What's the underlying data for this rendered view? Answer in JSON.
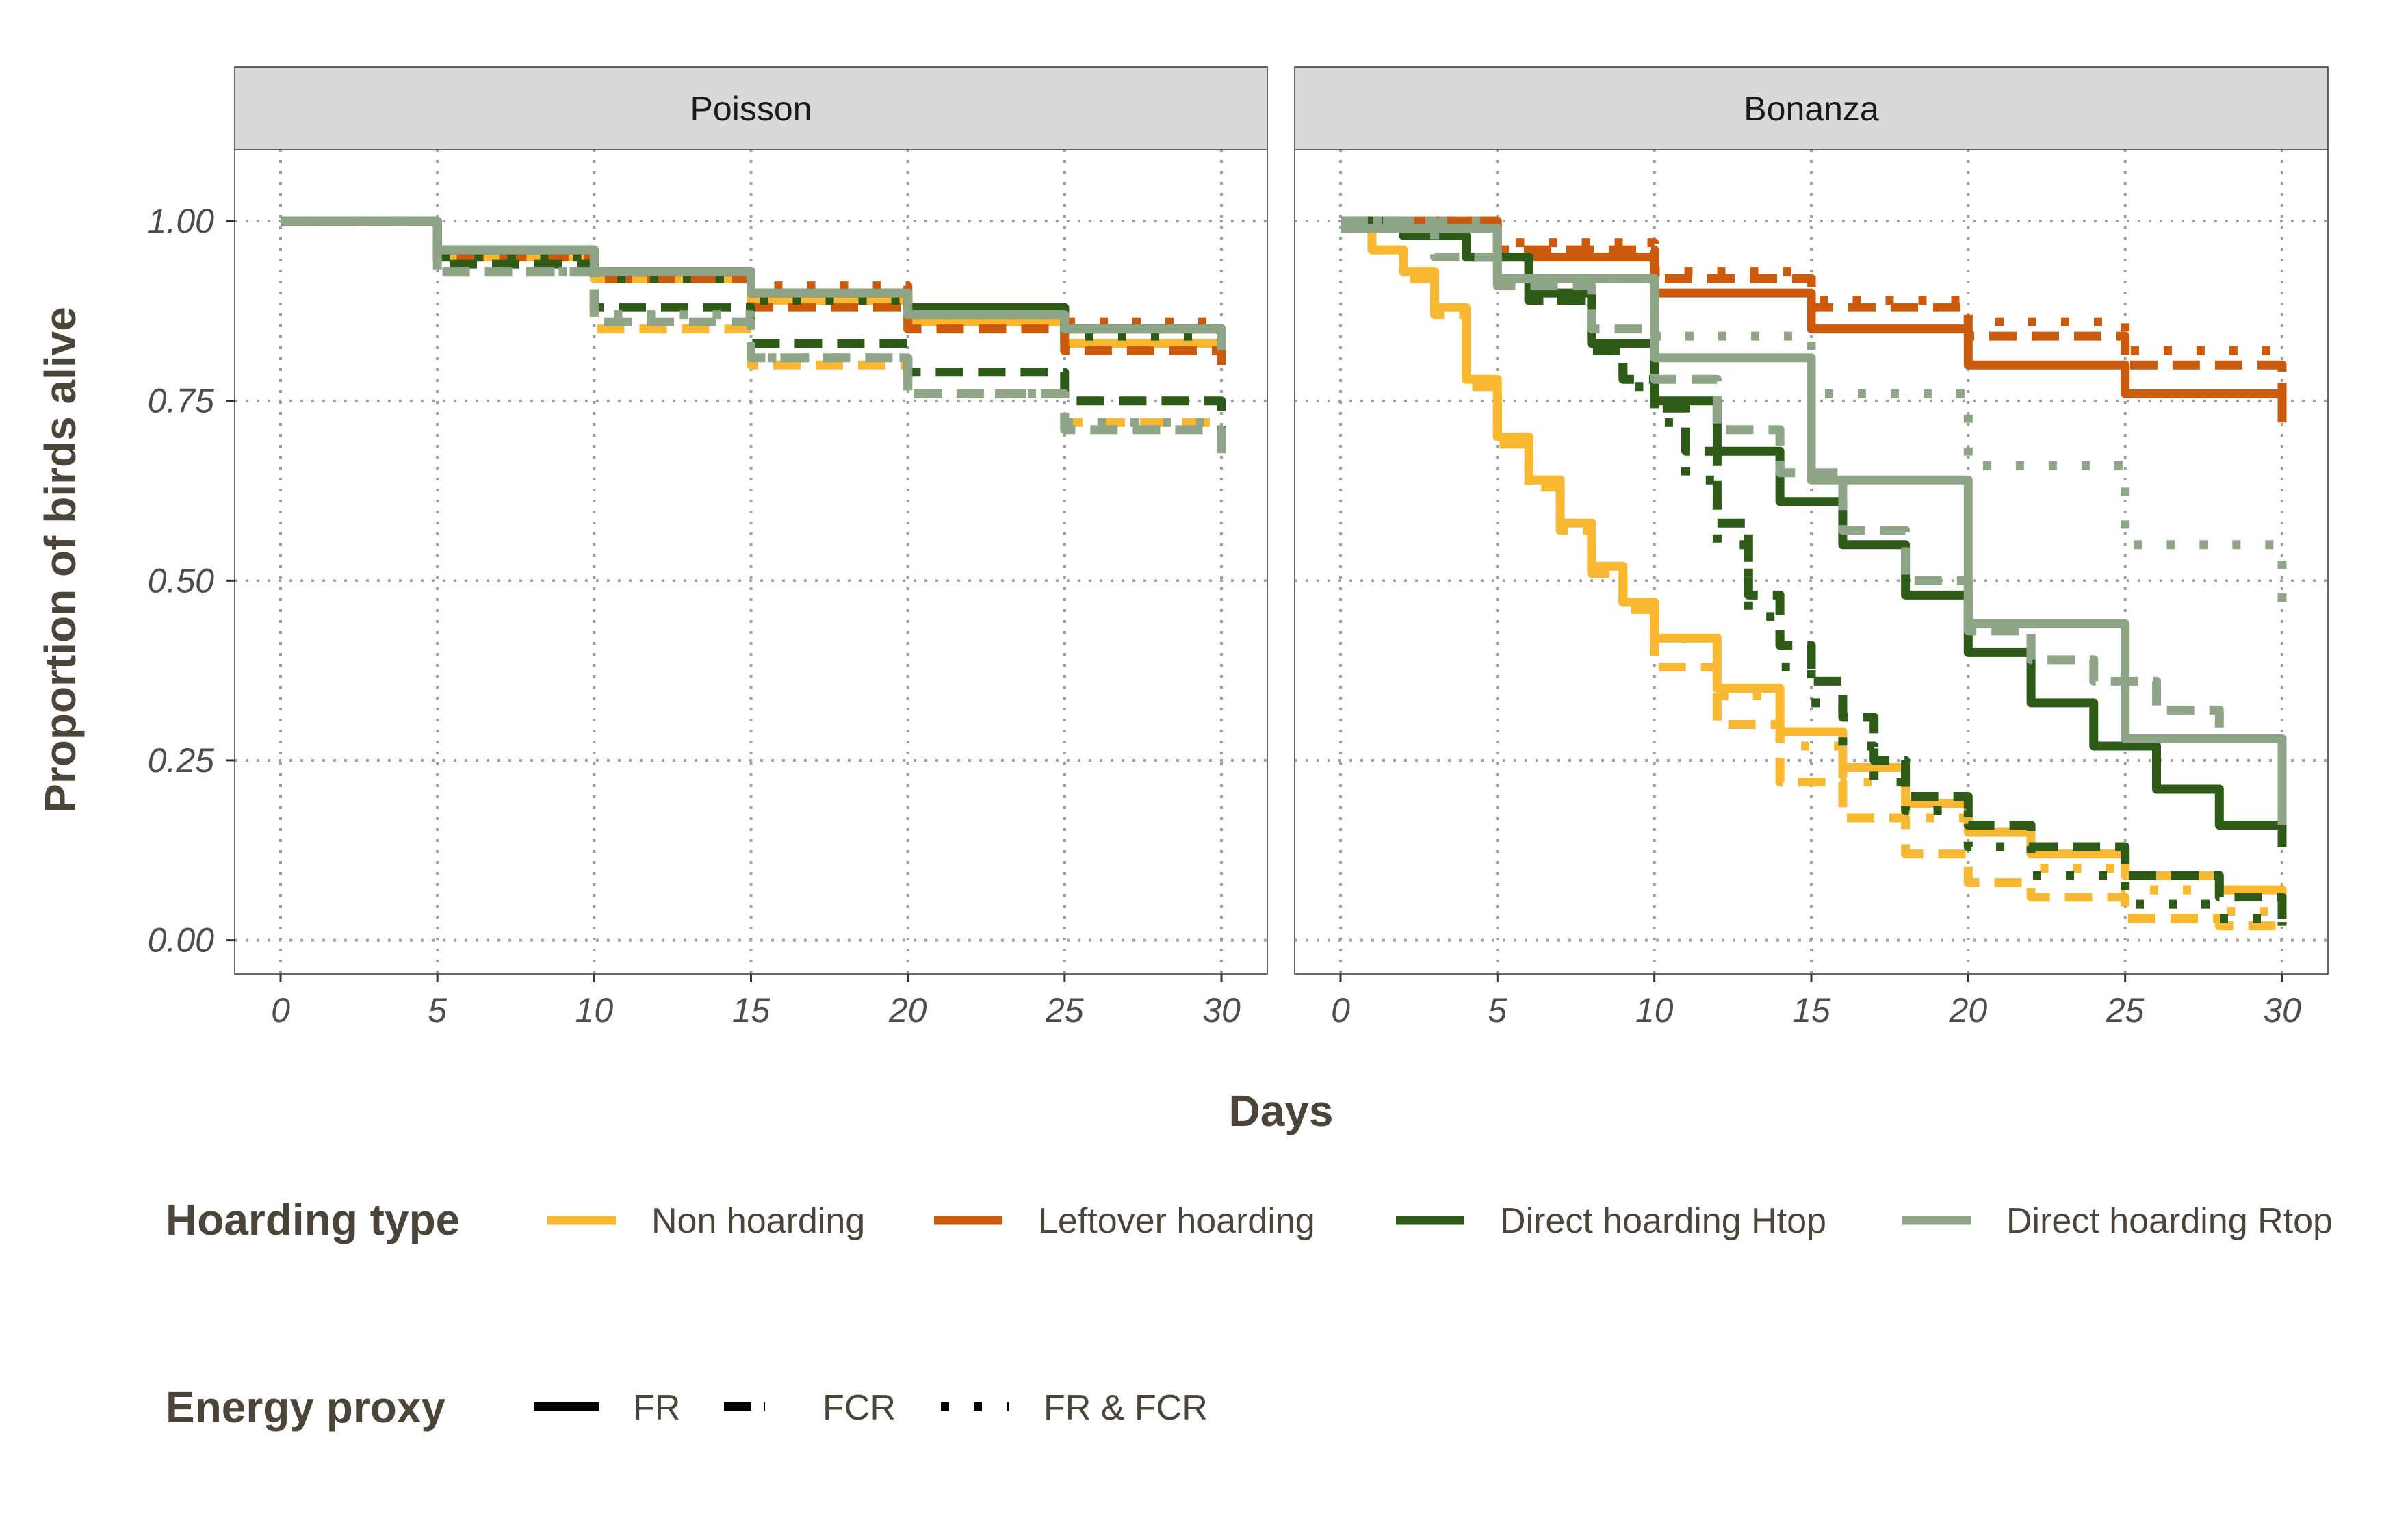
{
  "chart_data": {
    "type": "line",
    "ylabel": "Proportion of birds alive",
    "xlabel": "Days",
    "xlim": [
      0,
      30
    ],
    "ylim": [
      0,
      1
    ],
    "x_ticks": [
      "0",
      "5",
      "10",
      "15",
      "20",
      "25",
      "30"
    ],
    "y_ticks": [
      "0.00",
      "0.25",
      "0.50",
      "0.75",
      "1.00"
    ],
    "grid": "dotted",
    "legend_position": "bottom",
    "legends": {
      "hoarding_type": {
        "title": "Hoarding type",
        "entries": [
          {
            "label": "Non hoarding",
            "color": "#f9b832"
          },
          {
            "label": "Leftover hoarding",
            "color": "#cc5a0d"
          },
          {
            "label": "Direct hoarding Htop",
            "color": "#2d5a16"
          },
          {
            "label": "Direct hoarding Rtop",
            "color": "#8fa587"
          }
        ]
      },
      "energy_proxy": {
        "title": "Energy proxy",
        "entries": [
          {
            "label": "FR",
            "dash": "solid"
          },
          {
            "label": "FCR",
            "dash": "dashed"
          },
          {
            "label": "FR & FCR",
            "dash": "dotted"
          }
        ]
      }
    },
    "panels": [
      {
        "title": "Poisson",
        "series": [
          {
            "hoarding": "Non hoarding",
            "proxy": "FR",
            "x": [
              0,
              5,
              10,
              15,
              20,
              25,
              30
            ],
            "y": [
              1.0,
              0.95,
              0.92,
              0.89,
              0.86,
              0.83,
              0.8
            ]
          },
          {
            "hoarding": "Non hoarding",
            "proxy": "FCR",
            "x": [
              0,
              5,
              10,
              15,
              20,
              25,
              30
            ],
            "y": [
              1.0,
              0.93,
              0.85,
              0.8,
              0.76,
              0.72,
              0.67
            ]
          },
          {
            "hoarding": "Non hoarding",
            "proxy": "FR & FCR",
            "x": [
              0,
              5,
              10,
              15,
              20,
              25,
              30
            ],
            "y": [
              1.0,
              0.96,
              0.93,
              0.9,
              0.87,
              0.85,
              0.82
            ]
          },
          {
            "hoarding": "Leftover hoarding",
            "proxy": "FR",
            "x": [
              0,
              5,
              10,
              15,
              20,
              25,
              30
            ],
            "y": [
              1.0,
              0.96,
              0.93,
              0.9,
              0.88,
              0.85,
              0.82
            ]
          },
          {
            "hoarding": "Leftover hoarding",
            "proxy": "FCR",
            "x": [
              0,
              5,
              10,
              15,
              20,
              25,
              30
            ],
            "y": [
              1.0,
              0.95,
              0.92,
              0.88,
              0.85,
              0.82,
              0.8
            ]
          },
          {
            "hoarding": "Leftover hoarding",
            "proxy": "FR & FCR",
            "x": [
              0,
              5,
              10,
              15,
              20,
              25,
              30
            ],
            "y": [
              1.0,
              0.96,
              0.93,
              0.91,
              0.88,
              0.86,
              0.84
            ]
          },
          {
            "hoarding": "Direct hoarding Htop",
            "proxy": "FR",
            "x": [
              0,
              5,
              10,
              15,
              20,
              25,
              30
            ],
            "y": [
              1.0,
              0.96,
              0.93,
              0.9,
              0.88,
              0.85,
              0.82
            ]
          },
          {
            "hoarding": "Direct hoarding Htop",
            "proxy": "FCR",
            "x": [
              0,
              5,
              10,
              15,
              20,
              25,
              30
            ],
            "y": [
              1.0,
              0.94,
              0.88,
              0.83,
              0.79,
              0.75,
              0.7
            ]
          },
          {
            "hoarding": "Direct hoarding Htop",
            "proxy": "FR & FCR",
            "x": [
              0,
              5,
              10,
              15,
              20,
              25,
              30
            ],
            "y": [
              1.0,
              0.95,
              0.92,
              0.89,
              0.87,
              0.84,
              0.81
            ]
          },
          {
            "hoarding": "Direct hoarding Rtop",
            "proxy": "FR",
            "x": [
              0,
              5,
              10,
              15,
              20,
              25,
              30
            ],
            "y": [
              1.0,
              0.96,
              0.93,
              0.9,
              0.87,
              0.85,
              0.82
            ]
          },
          {
            "hoarding": "Direct hoarding Rtop",
            "proxy": "FCR",
            "x": [
              0,
              5,
              10,
              15,
              20,
              25,
              30
            ],
            "y": [
              1.0,
              0.93,
              0.86,
              0.81,
              0.76,
              0.71,
              0.66
            ]
          },
          {
            "hoarding": "Direct hoarding Rtop",
            "proxy": "FR & FCR",
            "x": [
              0,
              5,
              10,
              15,
              20,
              25,
              30
            ],
            "y": [
              1.0,
              0.93,
              0.87,
              0.81,
              0.76,
              0.72,
              0.67
            ]
          }
        ]
      },
      {
        "title": "Bonanza",
        "series": [
          {
            "hoarding": "Non hoarding",
            "proxy": "FR",
            "x": [
              0,
              1,
              2,
              3,
              4,
              5,
              6,
              7,
              8,
              9,
              10,
              12,
              14,
              16,
              18,
              20,
              22,
              25,
              28,
              30
            ],
            "y": [
              1.0,
              0.96,
              0.93,
              0.88,
              0.78,
              0.7,
              0.64,
              0.58,
              0.52,
              0.47,
              0.42,
              0.35,
              0.29,
              0.24,
              0.19,
              0.15,
              0.12,
              0.09,
              0.07,
              0.05
            ]
          },
          {
            "hoarding": "Non hoarding",
            "proxy": "FCR",
            "x": [
              0,
              1,
              2,
              3,
              4,
              5,
              6,
              7,
              8,
              9,
              10,
              12,
              14,
              16,
              18,
              20,
              22,
              25,
              28,
              30
            ],
            "y": [
              1.0,
              0.96,
              0.92,
              0.87,
              0.77,
              0.69,
              0.63,
              0.57,
              0.51,
              0.46,
              0.38,
              0.3,
              0.22,
              0.17,
              0.12,
              0.08,
              0.06,
              0.03,
              0.02,
              0.01
            ]
          },
          {
            "hoarding": "Non hoarding",
            "proxy": "FR & FCR",
            "x": [
              0,
              1,
              2,
              3,
              4,
              5,
              6,
              7,
              8,
              9,
              10,
              12,
              14,
              16,
              18,
              20,
              22,
              25,
              28,
              30
            ],
            "y": [
              1.0,
              0.96,
              0.93,
              0.88,
              0.78,
              0.7,
              0.64,
              0.58,
              0.52,
              0.47,
              0.42,
              0.34,
              0.27,
              0.22,
              0.17,
              0.13,
              0.1,
              0.07,
              0.04,
              0.02
            ]
          },
          {
            "hoarding": "Leftover hoarding",
            "proxy": "FR",
            "x": [
              0,
              5,
              10,
              15,
              20,
              25,
              30
            ],
            "y": [
              1.0,
              0.95,
              0.9,
              0.85,
              0.8,
              0.76,
              0.72
            ]
          },
          {
            "hoarding": "Leftover hoarding",
            "proxy": "FCR",
            "x": [
              0,
              5,
              10,
              15,
              20,
              25,
              30
            ],
            "y": [
              1.0,
              0.96,
              0.92,
              0.88,
              0.84,
              0.8,
              0.74
            ]
          },
          {
            "hoarding": "Leftover hoarding",
            "proxy": "FR & FCR",
            "x": [
              0,
              5,
              10,
              15,
              20,
              25,
              30
            ],
            "y": [
              1.0,
              0.97,
              0.93,
              0.89,
              0.86,
              0.82,
              0.77
            ]
          },
          {
            "hoarding": "Direct hoarding Htop",
            "proxy": "FR",
            "x": [
              0,
              2,
              4,
              6,
              8,
              10,
              12,
              14,
              16,
              18,
              20,
              22,
              24,
              26,
              28,
              30
            ],
            "y": [
              1.0,
              0.98,
              0.95,
              0.9,
              0.83,
              0.75,
              0.68,
              0.61,
              0.55,
              0.48,
              0.4,
              0.33,
              0.27,
              0.21,
              0.16,
              0.13
            ]
          },
          {
            "hoarding": "Direct hoarding Htop",
            "proxy": "FCR",
            "x": [
              0,
              2,
              4,
              6,
              8,
              9,
              10,
              11,
              12,
              13,
              14,
              15,
              16,
              17,
              18,
              20,
              22,
              25,
              28,
              30
            ],
            "y": [
              1.0,
              0.98,
              0.95,
              0.89,
              0.82,
              0.78,
              0.74,
              0.68,
              0.58,
              0.48,
              0.41,
              0.36,
              0.31,
              0.25,
              0.2,
              0.16,
              0.13,
              0.09,
              0.06,
              0.03
            ]
          },
          {
            "hoarding": "Direct hoarding Htop",
            "proxy": "FR & FCR",
            "x": [
              0,
              2,
              4,
              6,
              8,
              9,
              10,
              11,
              12,
              13,
              14,
              15,
              16,
              17,
              18,
              20,
              22,
              25,
              28,
              30
            ],
            "y": [
              1.0,
              0.98,
              0.95,
              0.89,
              0.82,
              0.77,
              0.72,
              0.64,
              0.55,
              0.45,
              0.38,
              0.33,
              0.27,
              0.22,
              0.18,
              0.13,
              0.09,
              0.05,
              0.03,
              0.02
            ]
          },
          {
            "hoarding": "Direct hoarding Rtop",
            "proxy": "FR",
            "x": [
              0,
              5,
              10,
              15,
              20,
              25,
              30
            ],
            "y": [
              0.99,
              0.92,
              0.81,
              0.64,
              0.44,
              0.28,
              0.16
            ]
          },
          {
            "hoarding": "Direct hoarding Rtop",
            "proxy": "FCR",
            "x": [
              0,
              3,
              5,
              8,
              10,
              12,
              14,
              16,
              18,
              20,
              22,
              24,
              26,
              28,
              30
            ],
            "y": [
              1.0,
              0.95,
              0.91,
              0.85,
              0.78,
              0.71,
              0.65,
              0.57,
              0.5,
              0.43,
              0.39,
              0.36,
              0.32,
              0.28,
              0.24
            ]
          },
          {
            "hoarding": "Direct hoarding Rtop",
            "proxy": "FR & FCR",
            "x": [
              0,
              5,
              10,
              15,
              20,
              25,
              30
            ],
            "y": [
              1.0,
              0.92,
              0.84,
              0.76,
              0.66,
              0.55,
              0.44
            ]
          }
        ]
      }
    ]
  }
}
